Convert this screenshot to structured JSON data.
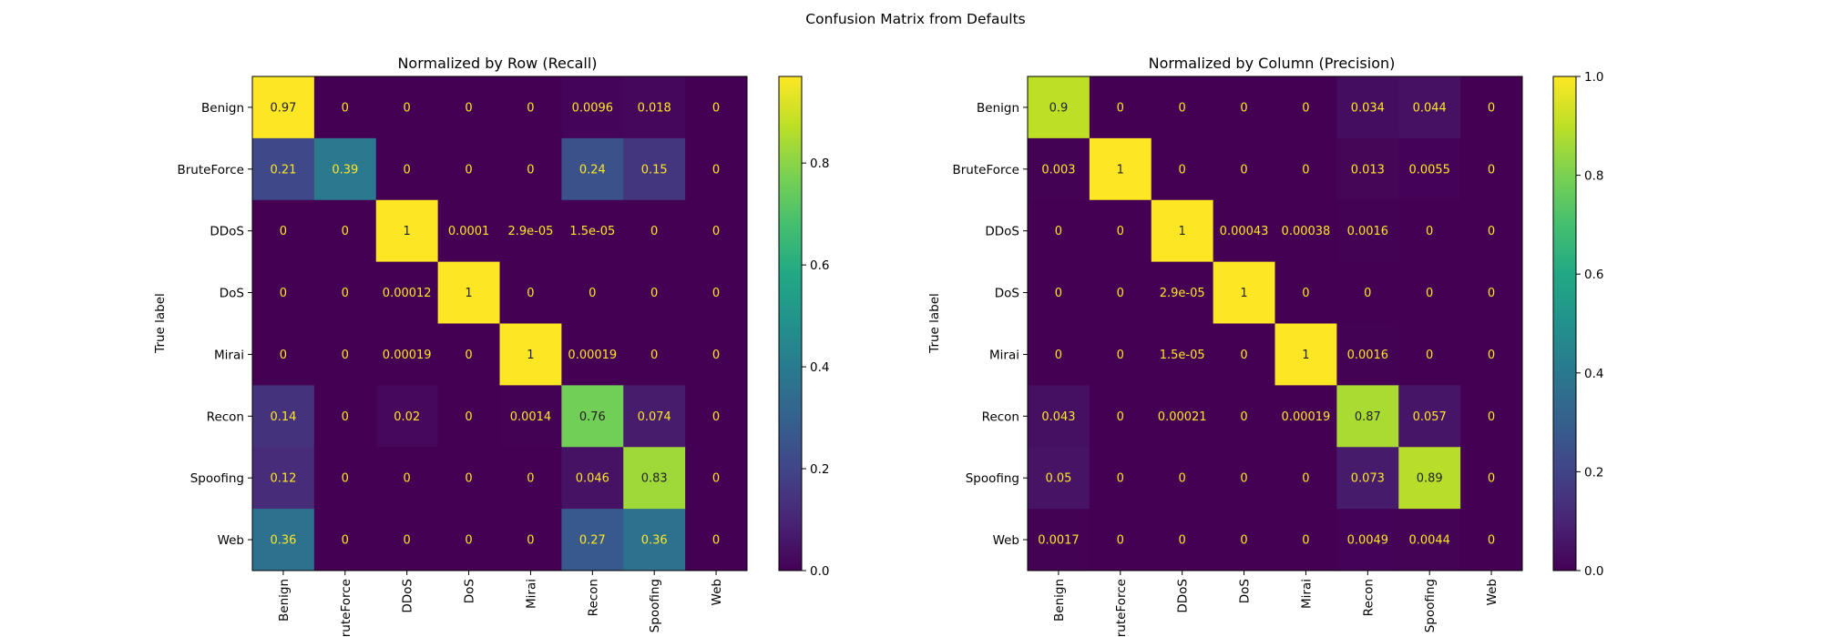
{
  "figure": {
    "title": "Confusion Matrix from Defaults"
  },
  "chart_data": [
    {
      "type": "heatmap",
      "title": "Normalized by Row (Recall)",
      "xlabel": "",
      "ylabel": "True label",
      "x_categories": [
        "Benign",
        "BruteForce",
        "DDoS",
        "DoS",
        "Mirai",
        "Recon",
        "Spoofing",
        "Web"
      ],
      "y_categories": [
        "Benign",
        "BruteForce",
        "DDoS",
        "DoS",
        "Mirai",
        "Recon",
        "Spoofing",
        "Web"
      ],
      "values": [
        [
          0.97,
          0,
          0,
          0,
          0,
          0.0096,
          0.018,
          0
        ],
        [
          0.21,
          0.39,
          0,
          0,
          0,
          0.24,
          0.15,
          0
        ],
        [
          0,
          0,
          1,
          0.0001,
          2.9e-05,
          1.5e-05,
          0,
          0
        ],
        [
          0,
          0,
          0.00012,
          1,
          0,
          0,
          0,
          0
        ],
        [
          0,
          0,
          0.00019,
          0,
          1,
          0.00019,
          0,
          0
        ],
        [
          0.14,
          0,
          0.02,
          0,
          0.0014,
          0.76,
          0.074,
          0
        ],
        [
          0.12,
          0,
          0,
          0,
          0,
          0.046,
          0.83,
          0
        ],
        [
          0.36,
          0,
          0,
          0,
          0,
          0.27,
          0.36,
          0
        ]
      ],
      "labels": [
        [
          "0.97",
          "0",
          "0",
          "0",
          "0",
          "0.0096",
          "0.018",
          "0"
        ],
        [
          "0.21",
          "0.39",
          "0",
          "0",
          "0",
          "0.24",
          "0.15",
          "0"
        ],
        [
          "0",
          "0",
          "1",
          "0.0001",
          "2.9e-05",
          "1.5e-05",
          "0",
          "0"
        ],
        [
          "0",
          "0",
          "0.00012",
          "1",
          "0",
          "0",
          "0",
          "0"
        ],
        [
          "0",
          "0",
          "0.00019",
          "0",
          "1",
          "0.00019",
          "0",
          "0"
        ],
        [
          "0.14",
          "0",
          "0.02",
          "0",
          "0.0014",
          "0.76",
          "0.074",
          "0"
        ],
        [
          "0.12",
          "0",
          "0",
          "0",
          "0",
          "0.046",
          "0.83",
          "0"
        ],
        [
          "0.36",
          "0",
          "0",
          "0",
          "0",
          "0.27",
          "0.36",
          "0"
        ]
      ],
      "colorbar": {
        "min": 0,
        "max": 0.97,
        "ticks": [
          0.0,
          0.2,
          0.4,
          0.6,
          0.8
        ],
        "tick_labels": [
          "0.0",
          "0.2",
          "0.4",
          "0.6",
          "0.8"
        ]
      },
      "colormap": "viridis"
    },
    {
      "type": "heatmap",
      "title": "Normalized by Column (Precision)",
      "xlabel": "",
      "ylabel": "True label",
      "x_categories": [
        "Benign",
        "BruteForce",
        "DDoS",
        "DoS",
        "Mirai",
        "Recon",
        "Spoofing",
        "Web"
      ],
      "y_categories": [
        "Benign",
        "BruteForce",
        "DDoS",
        "DoS",
        "Mirai",
        "Recon",
        "Spoofing",
        "Web"
      ],
      "values": [
        [
          0.9,
          0,
          0,
          0,
          0,
          0.034,
          0.044,
          0
        ],
        [
          0.003,
          1,
          0,
          0,
          0,
          0.013,
          0.0055,
          0
        ],
        [
          0,
          0,
          1,
          0.00043,
          0.00038,
          0.0016,
          0,
          0
        ],
        [
          0,
          0,
          2.9e-05,
          1,
          0,
          0,
          0,
          0
        ],
        [
          0,
          0,
          1.5e-05,
          0,
          1,
          0.0016,
          0,
          0
        ],
        [
          0.043,
          0,
          0.00021,
          0,
          0.00019,
          0.87,
          0.057,
          0
        ],
        [
          0.05,
          0,
          0,
          0,
          0,
          0.073,
          0.89,
          0
        ],
        [
          0.0017,
          0,
          0,
          0,
          0,
          0.0049,
          0.0044,
          0
        ]
      ],
      "labels": [
        [
          "0.9",
          "0",
          "0",
          "0",
          "0",
          "0.034",
          "0.044",
          "0"
        ],
        [
          "0.003",
          "1",
          "0",
          "0",
          "0",
          "0.013",
          "0.0055",
          "0"
        ],
        [
          "0",
          "0",
          "1",
          "0.00043",
          "0.00038",
          "0.0016",
          "0",
          "0"
        ],
        [
          "0",
          "0",
          "2.9e-05",
          "1",
          "0",
          "0",
          "0",
          "0"
        ],
        [
          "0",
          "0",
          "1.5e-05",
          "0",
          "1",
          "0.0016",
          "0",
          "0"
        ],
        [
          "0.043",
          "0",
          "0.00021",
          "0",
          "0.00019",
          "0.87",
          "0.057",
          "0"
        ],
        [
          "0.05",
          "0",
          "0",
          "0",
          "0",
          "0.073",
          "0.89",
          "0"
        ],
        [
          "0.0017",
          "0",
          "0",
          "0",
          "0",
          "0.0049",
          "0.0044",
          "0"
        ]
      ],
      "colorbar": {
        "min": 0,
        "max": 1.0,
        "ticks": [
          0.0,
          0.2,
          0.4,
          0.6,
          0.8,
          1.0
        ],
        "tick_labels": [
          "0.0",
          "0.2",
          "0.4",
          "0.6",
          "0.8",
          "1.0"
        ]
      },
      "colormap": "viridis"
    }
  ],
  "colors": {
    "text_on_dark": "#fde725",
    "text_on_light": "#1f1f1f"
  }
}
